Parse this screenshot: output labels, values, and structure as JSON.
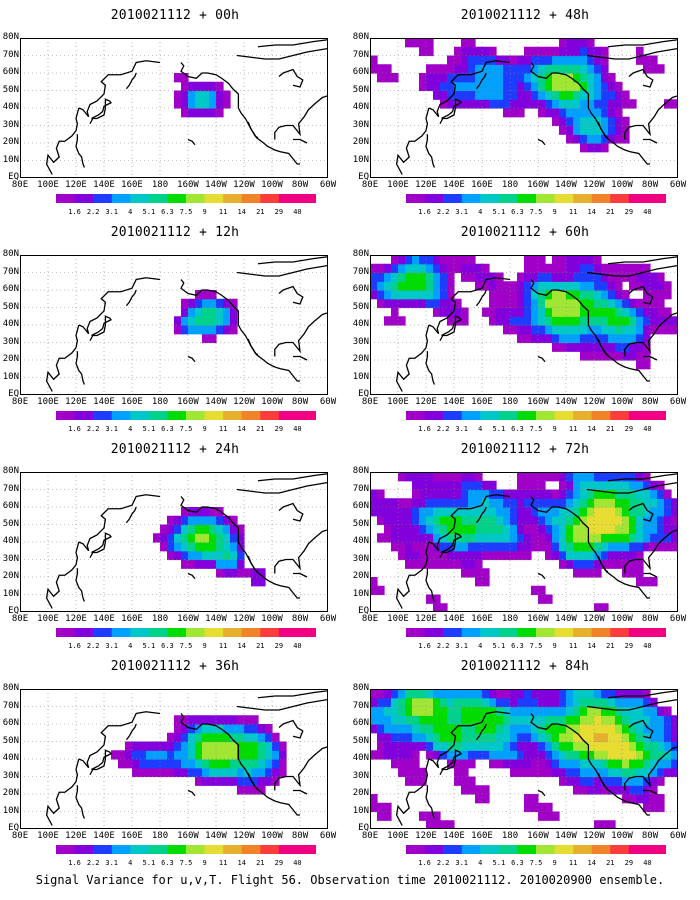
{
  "chart_data": {
    "type": "heatmap",
    "colorbar": {
      "labels": [
        "1.6",
        "2.2",
        "3.1",
        "4",
        "5.1",
        "6.3",
        "7.5",
        "9",
        "11",
        "14",
        "21",
        "29",
        "40"
      ],
      "colors": [
        "#a000c8",
        "#8200dc",
        "#1e3cff",
        "#00a0ff",
        "#00c8c8",
        "#00d28c",
        "#00dc00",
        "#a0e632",
        "#e6dc32",
        "#e6af2d",
        "#f08228",
        "#fa3c3c",
        "#f00082"
      ]
    },
    "x_ticks": [
      "80E",
      "100E",
      "120E",
      "140E",
      "160E",
      "180",
      "160W",
      "140W",
      "120W",
      "100W",
      "80W",
      "60W"
    ],
    "y_ticks": [
      "EQ",
      "10N",
      "20N",
      "30N",
      "40N",
      "50N",
      "60N",
      "70N",
      "80N"
    ],
    "xlim": [
      80,
      300
    ],
    "ylim": [
      0,
      80
    ],
    "panels": [
      {
        "title": "2010021112 + 00h",
        "lead_hours": 0,
        "blobs": [
          [
            -150,
            45,
            16,
            9,
            6
          ],
          [
            -165,
            58,
            5,
            3,
            2
          ],
          [
            -135,
            20,
            6,
            4,
            2
          ]
        ],
        "noise": 0.0
      },
      {
        "title": "2010021112 + 12h",
        "lead_hours": 12,
        "blobs": [
          [
            -145,
            45,
            18,
            10,
            7
          ],
          [
            -160,
            40,
            8,
            5,
            3
          ],
          [
            -120,
            15,
            6,
            5,
            2
          ]
        ],
        "noise": 0.4
      },
      {
        "title": "2010021112 + 24h",
        "lead_hours": 24,
        "blobs": [
          [
            -150,
            42,
            22,
            12,
            9
          ],
          [
            -130,
            30,
            10,
            8,
            4
          ],
          [
            -110,
            20,
            8,
            6,
            3
          ]
        ],
        "noise": 0.9
      },
      {
        "title": "2010021112 + 36h",
        "lead_hours": 36,
        "blobs": [
          [
            -140,
            45,
            24,
            14,
            10
          ],
          [
            -110,
            40,
            16,
            14,
            5
          ],
          [
            170,
            40,
            20,
            10,
            3
          ]
        ],
        "noise": 1.4
      },
      {
        "title": "2010021112 + 48h",
        "lead_hours": 48,
        "blobs": [
          [
            -140,
            55,
            22,
            14,
            9
          ],
          [
            -120,
            30,
            18,
            12,
            5
          ],
          [
            160,
            55,
            30,
            14,
            4
          ]
        ],
        "noise": 2.0
      },
      {
        "title": "2010021112 + 60h",
        "lead_hours": 60,
        "blobs": [
          [
            -140,
            50,
            26,
            16,
            9
          ],
          [
            110,
            65,
            20,
            10,
            8
          ],
          [
            -100,
            40,
            20,
            14,
            5
          ]
        ],
        "noise": 2.6
      },
      {
        "title": "2010021112 + 72h",
        "lead_hours": 72,
        "blobs": [
          [
            -110,
            55,
            30,
            18,
            10
          ],
          [
            150,
            50,
            36,
            16,
            6
          ],
          [
            -130,
            40,
            14,
            10,
            6
          ]
        ],
        "noise": 3.0
      },
      {
        "title": "2010021112 + 84h",
        "lead_hours": 84,
        "blobs": [
          [
            -120,
            55,
            30,
            18,
            11
          ],
          [
            150,
            60,
            40,
            16,
            7
          ],
          [
            110,
            70,
            20,
            8,
            7
          ],
          [
            -90,
            40,
            24,
            14,
            6
          ]
        ],
        "noise": 3.4
      }
    ]
  },
  "caption": "Signal Variance for u,v,T. Flight 56. Observation time 2010021112. 2010020900 ensemble."
}
